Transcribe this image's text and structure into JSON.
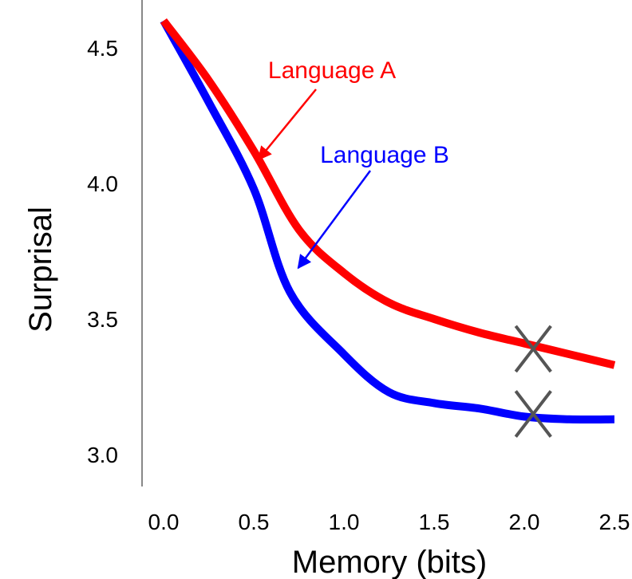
{
  "chart_data": {
    "type": "line",
    "xlabel": "Memory (bits)",
    "ylabel": "Surprisal",
    "xlim": [
      0.0,
      2.5
    ],
    "ylim": [
      3.0,
      4.5
    ],
    "grid": false,
    "x_ticks": [
      "0.0",
      "0.5",
      "1.0",
      "1.5",
      "2.0",
      "2.5"
    ],
    "y_ticks": [
      "3.0",
      "3.5",
      "4.0",
      "4.5"
    ],
    "series": [
      {
        "name": "Language A",
        "color": "#ff0000",
        "points": [
          [
            0.0,
            4.6
          ],
          [
            0.25,
            4.38
          ],
          [
            0.5,
            4.12
          ],
          [
            0.75,
            3.83
          ],
          [
            1.0,
            3.67
          ],
          [
            1.25,
            3.56
          ],
          [
            1.5,
            3.5
          ],
          [
            1.75,
            3.45
          ],
          [
            2.0,
            3.41
          ],
          [
            2.25,
            3.37
          ],
          [
            2.5,
            3.33
          ]
        ],
        "annotation_at": [
          0.5,
          4.1
        ],
        "marker_at": [
          2.05,
          3.39
        ]
      },
      {
        "name": "Language B",
        "color": "#0000ff",
        "points": [
          [
            0.0,
            4.6
          ],
          [
            0.25,
            4.3
          ],
          [
            0.5,
            3.98
          ],
          [
            0.7,
            3.6
          ],
          [
            1.0,
            3.37
          ],
          [
            1.25,
            3.23
          ],
          [
            1.5,
            3.19
          ],
          [
            1.75,
            3.17
          ],
          [
            2.0,
            3.14
          ],
          [
            2.25,
            3.13
          ],
          [
            2.5,
            3.13
          ]
        ],
        "annotation_at": [
          0.72,
          3.7
        ],
        "marker_at": [
          2.05,
          3.15
        ]
      }
    ],
    "marker_color": "#555555"
  }
}
